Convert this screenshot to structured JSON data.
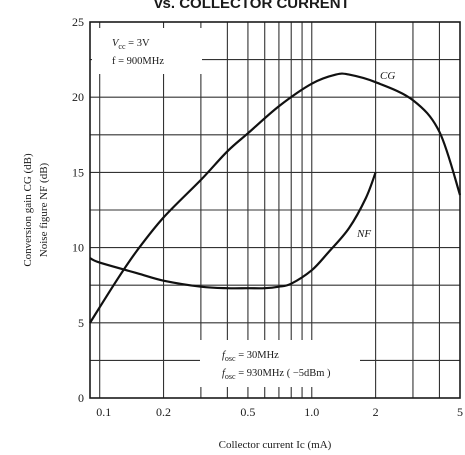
{
  "chart_data": {
    "type": "line",
    "title": "vs. COLLECTOR CURRENT",
    "xlabel": "Collector current  Ic  (mA)",
    "ylabel": [
      "Conversion gain CG (dB)",
      "Noise figure NF (dB)"
    ],
    "x_scale": "log",
    "xlim": [
      0.09,
      5
    ],
    "ylim": [
      0,
      25
    ],
    "x_ticks": [
      0.1,
      0.2,
      0.5,
      1.0,
      2,
      5
    ],
    "x_tick_labels": [
      "0.1",
      "0.2",
      "0.5",
      "1.0",
      "2",
      "5"
    ],
    "y_ticks": [
      0,
      5,
      10,
      15,
      20,
      25
    ],
    "y_tick_labels": [
      "0",
      "5",
      "10",
      "15",
      "20",
      "25"
    ],
    "grid": true,
    "series": [
      {
        "name": "CG",
        "x": [
          0.09,
          0.12,
          0.15,
          0.2,
          0.3,
          0.4,
          0.5,
          0.7,
          1.0,
          1.3,
          1.5,
          2.0,
          3.0,
          4.0,
          5.0
        ],
        "y": [
          5.0,
          7.8,
          9.8,
          12.0,
          14.5,
          16.4,
          17.6,
          19.4,
          20.9,
          21.5,
          21.5,
          21.0,
          19.8,
          17.7,
          13.5
        ]
      },
      {
        "name": "NF",
        "x": [
          0.09,
          0.1,
          0.15,
          0.2,
          0.3,
          0.4,
          0.5,
          0.6,
          0.7,
          0.8,
          1.0,
          1.2,
          1.5,
          1.8,
          2.0
        ],
        "y": [
          9.3,
          9.0,
          8.3,
          7.8,
          7.4,
          7.3,
          7.3,
          7.3,
          7.4,
          7.6,
          8.5,
          9.7,
          11.3,
          13.3,
          15.0
        ]
      }
    ],
    "annotations": {
      "top_left": [
        "V",
        "cc",
        " = 3V",
        "f = 900MHz"
      ],
      "bottom": [
        "f",
        "osc",
        " = 30MHz",
        "f",
        "osc",
        " = 930MHz ( −5dBm )"
      ]
    }
  }
}
